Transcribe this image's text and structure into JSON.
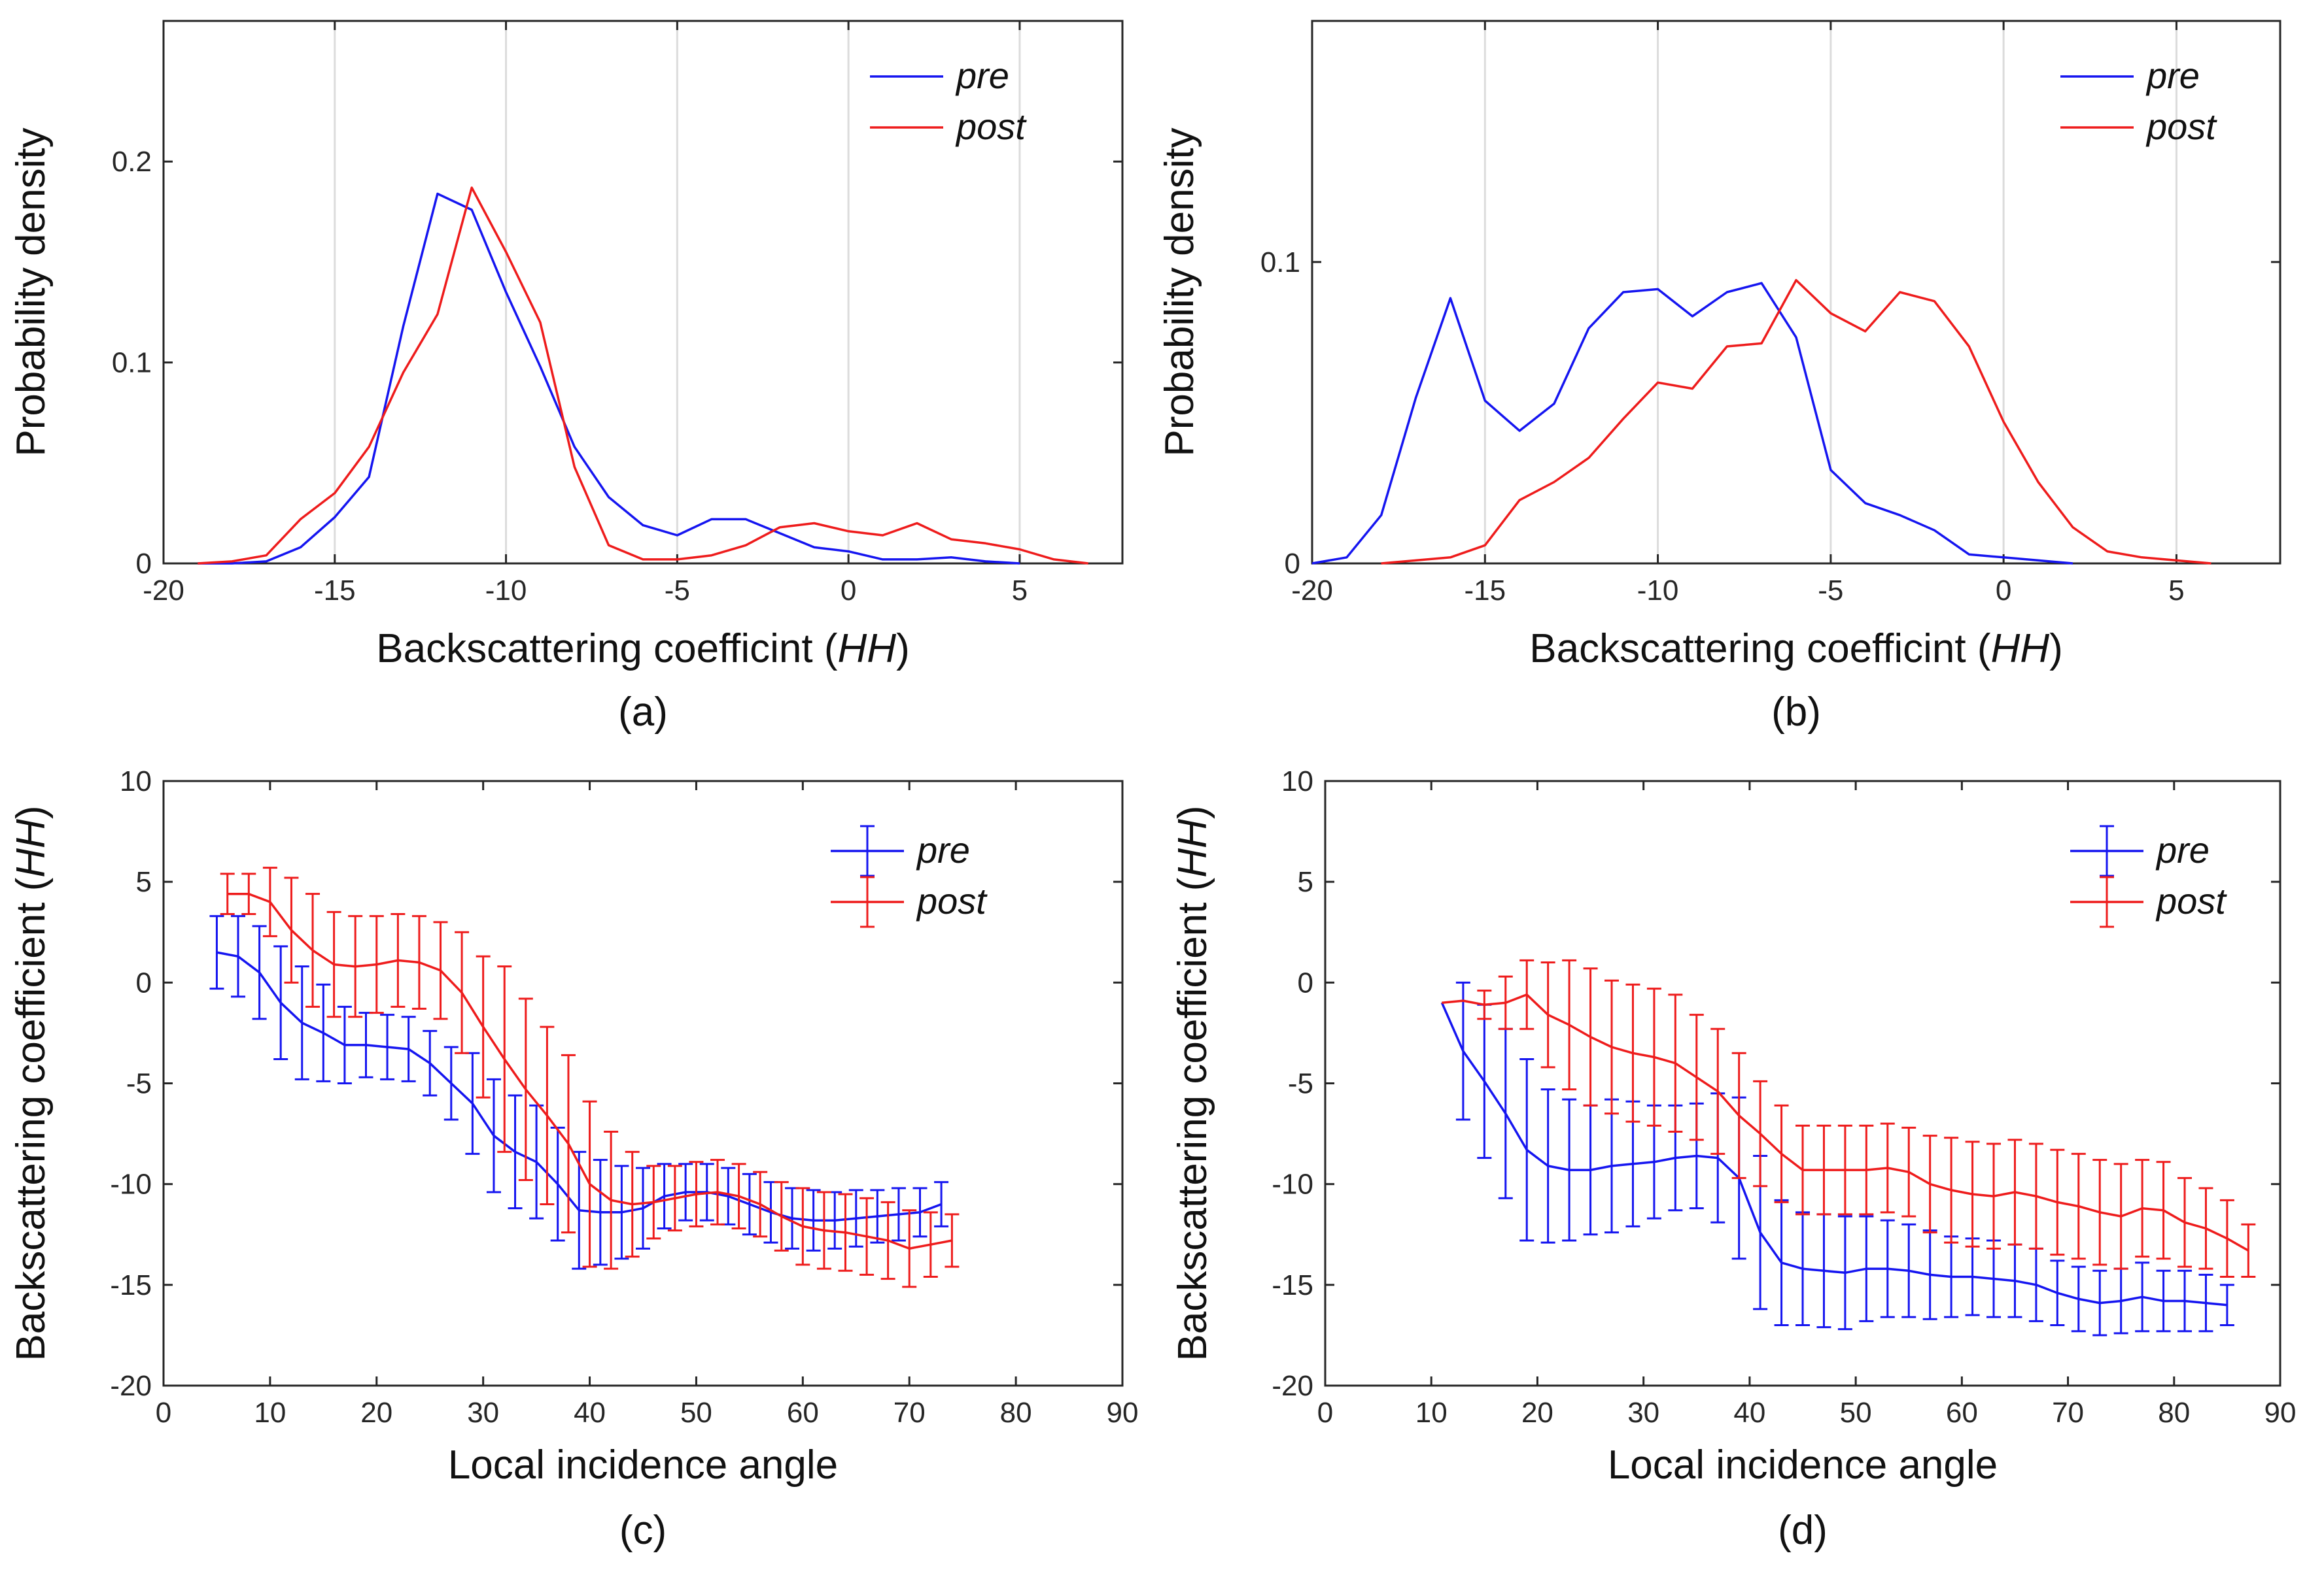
{
  "colors": {
    "pre": "#1515f0",
    "post": "#ee1c1c",
    "axis": "#262626",
    "grid": "#dcdcdc"
  },
  "chart_data": [
    {
      "panel": "(a)",
      "type": "line",
      "xlabel": "Backscattering coefficint",
      "xlabel_italic": "HH",
      "ylabel": "Probability density",
      "xlim": [
        -20,
        8
      ],
      "ylim": [
        0,
        0.27
      ],
      "xticks": [
        -20,
        -15,
        -10,
        -5,
        0,
        5
      ],
      "yticks": [
        0,
        0.1,
        0.2
      ],
      "ytick_labels": [
        "0",
        "0.1",
        "0.2"
      ],
      "grid_x": [
        -15,
        -10,
        -5,
        0,
        5
      ],
      "legend": [
        "pre",
        "post"
      ],
      "series": [
        {
          "name": "pre",
          "x": [
            -19,
            -18,
            -17,
            -16,
            -15,
            -14,
            -13,
            -12,
            -11,
            -10,
            -9,
            -8,
            -7,
            -6,
            -5,
            -4,
            -3,
            -2,
            -1,
            0,
            1,
            2,
            3,
            4,
            5
          ],
          "y": [
            0,
            0,
            0.001,
            0.008,
            0.023,
            0.043,
            0.118,
            0.184,
            0.176,
            0.135,
            0.098,
            0.058,
            0.033,
            0.019,
            0.014,
            0.022,
            0.022,
            0.015,
            0.008,
            0.006,
            0.002,
            0.002,
            0.003,
            0.001,
            0
          ]
        },
        {
          "name": "post",
          "x": [
            -19,
            -18,
            -17,
            -16,
            -15,
            -14,
            -13,
            -12,
            -11,
            -10,
            -9,
            -8,
            -7,
            -6,
            -5,
            -4,
            -3,
            -2,
            -1,
            0,
            1,
            2,
            3,
            4,
            5,
            6,
            7
          ],
          "y": [
            0,
            0.001,
            0.004,
            0.022,
            0.035,
            0.058,
            0.095,
            0.124,
            0.187,
            0.155,
            0.12,
            0.048,
            0.009,
            0.002,
            0.002,
            0.004,
            0.009,
            0.018,
            0.02,
            0.016,
            0.014,
            0.02,
            0.012,
            0.01,
            0.007,
            0.002,
            0
          ]
        }
      ]
    },
    {
      "panel": "(b)",
      "type": "line",
      "xlabel": "Backscattering coefficint",
      "xlabel_italic": "HH",
      "ylabel": "Probability density",
      "xlim": [
        -20,
        8
      ],
      "ylim": [
        0,
        0.18
      ],
      "xticks": [
        -20,
        -15,
        -10,
        -5,
        0,
        5
      ],
      "yticks": [
        0,
        0.1
      ],
      "ytick_labels": [
        "0",
        "0.1"
      ],
      "grid_x": [
        -15,
        -10,
        -5,
        0,
        5
      ],
      "legend": [
        "pre",
        "post"
      ],
      "series": [
        {
          "name": "pre",
          "x": [
            -20,
            -19,
            -18,
            -17,
            -16,
            -15,
            -14,
            -13,
            -12,
            -11,
            -10,
            -9,
            -8,
            -7,
            -6,
            -5,
            -4,
            -3,
            -2,
            -1,
            0,
            1,
            2
          ],
          "y": [
            0,
            0.002,
            0.016,
            0.055,
            0.088,
            0.054,
            0.044,
            0.053,
            0.078,
            0.09,
            0.091,
            0.082,
            0.09,
            0.093,
            0.075,
            0.031,
            0.02,
            0.016,
            0.011,
            0.003,
            0.002,
            0.001,
            0
          ]
        },
        {
          "name": "post",
          "x": [
            -18,
            -17,
            -16,
            -15,
            -14,
            -13,
            -12,
            -11,
            -10,
            -9,
            -8,
            -7,
            -6,
            -5,
            -4,
            -3,
            -2,
            -1,
            0,
            1,
            2,
            3,
            4,
            5,
            6
          ],
          "y": [
            0,
            0.001,
            0.002,
            0.006,
            0.021,
            0.027,
            0.035,
            0.048,
            0.06,
            0.058,
            0.072,
            0.073,
            0.094,
            0.083,
            0.077,
            0.09,
            0.087,
            0.072,
            0.047,
            0.027,
            0.012,
            0.004,
            0.002,
            0.001,
            0
          ]
        }
      ]
    },
    {
      "panel": "(c)",
      "type": "errorbar",
      "xlabel": "Local incidence angle",
      "ylabel": "Backscattering coefficient",
      "ylabel_italic": "HH",
      "xlim": [
        0,
        90
      ],
      "ylim": [
        -20,
        10
      ],
      "xticks": [
        0,
        10,
        20,
        30,
        40,
        50,
        60,
        70,
        80,
        90
      ],
      "yticks": [
        -20,
        -15,
        -10,
        -5,
        0,
        5,
        10
      ],
      "ytick_labels": [
        "-20",
        "-15",
        "-10",
        "-5",
        "0",
        "5",
        "10"
      ],
      "grid_x": [],
      "legend": [
        "pre",
        "post"
      ],
      "series": [
        {
          "name": "pre",
          "x": [
            5,
            7,
            9,
            11,
            13,
            15,
            17,
            19,
            21,
            23,
            25,
            27,
            29,
            31,
            33,
            35,
            37,
            39,
            41,
            43,
            45,
            47,
            49,
            51,
            53,
            55,
            57,
            59,
            61,
            63,
            65,
            67,
            69,
            71,
            73
          ],
          "y": [
            1.5,
            1.3,
            0.5,
            -1.0,
            -2.0,
            -2.5,
            -3.1,
            -3.1,
            -3.2,
            -3.3,
            -4.0,
            -5.0,
            -6.0,
            -7.6,
            -8.4,
            -8.9,
            -10.0,
            -11.3,
            -11.4,
            -11.4,
            -11.2,
            -10.6,
            -10.4,
            -10.4,
            -10.6,
            -11.0,
            -11.4,
            -11.7,
            -11.8,
            -11.8,
            -11.7,
            -11.6,
            -11.5,
            -11.4,
            -11.0
          ],
          "err": [
            1.8,
            2.0,
            2.3,
            2.8,
            2.8,
            2.4,
            1.9,
            1.6,
            1.6,
            1.6,
            1.6,
            1.8,
            2.5,
            2.8,
            2.8,
            2.8,
            2.8,
            2.9,
            2.6,
            2.3,
            2.0,
            1.6,
            1.4,
            1.4,
            1.4,
            1.5,
            1.5,
            1.5,
            1.5,
            1.4,
            1.4,
            1.3,
            1.3,
            1.2,
            1.1
          ]
        },
        {
          "name": "post",
          "x": [
            6,
            8,
            10,
            12,
            14,
            16,
            18,
            20,
            22,
            24,
            26,
            28,
            30,
            32,
            34,
            36,
            38,
            40,
            42,
            44,
            46,
            48,
            50,
            52,
            54,
            56,
            58,
            60,
            62,
            64,
            66,
            68,
            70,
            72,
            74
          ],
          "y": [
            4.4,
            4.4,
            4.0,
            2.6,
            1.6,
            0.9,
            0.8,
            0.9,
            1.1,
            1.0,
            0.6,
            -0.5,
            -2.2,
            -3.8,
            -5.3,
            -6.6,
            -8.0,
            -10.0,
            -10.8,
            -11.0,
            -10.9,
            -10.7,
            -10.5,
            -10.4,
            -10.6,
            -11.0,
            -11.6,
            -12.1,
            -12.3,
            -12.4,
            -12.6,
            -12.8,
            -13.2,
            -13.0,
            -12.8
          ],
          "err": [
            1.0,
            1.0,
            1.7,
            2.6,
            2.8,
            2.6,
            2.5,
            2.4,
            2.3,
            2.3,
            2.4,
            3.0,
            3.5,
            4.6,
            4.5,
            4.4,
            4.4,
            4.1,
            3.4,
            2.6,
            1.8,
            1.6,
            1.6,
            1.6,
            1.6,
            1.6,
            1.7,
            1.9,
            1.9,
            1.9,
            1.9,
            1.9,
            1.9,
            1.6,
            1.3
          ]
        }
      ]
    },
    {
      "panel": "(d)",
      "type": "errorbar",
      "xlabel": "Local incidence angle",
      "ylabel": "Backscattering coefficient",
      "ylabel_italic": "HH",
      "xlim": [
        0,
        90
      ],
      "ylim": [
        -20,
        10
      ],
      "xticks": [
        0,
        10,
        20,
        30,
        40,
        50,
        60,
        70,
        80,
        90
      ],
      "yticks": [
        -20,
        -15,
        -10,
        -5,
        0,
        5,
        10
      ],
      "ytick_labels": [
        "-20",
        "-15",
        "-10",
        "-5",
        "0",
        "5",
        "10"
      ],
      "grid_x": [],
      "legend": [
        "pre",
        "post"
      ],
      "series": [
        {
          "name": "pre",
          "x": [
            11,
            13,
            15,
            17,
            19,
            21,
            23,
            25,
            27,
            29,
            31,
            33,
            35,
            37,
            39,
            41,
            43,
            45,
            47,
            49,
            51,
            53,
            55,
            57,
            59,
            61,
            63,
            65,
            67,
            69,
            71,
            73,
            75,
            77,
            79,
            81,
            83,
            85
          ],
          "y": [
            -1.0,
            -3.4,
            -4.9,
            -6.5,
            -8.3,
            -9.1,
            -9.3,
            -9.3,
            -9.1,
            -9.0,
            -8.9,
            -8.7,
            -8.6,
            -8.7,
            -9.7,
            -12.4,
            -13.9,
            -14.2,
            -14.3,
            -14.4,
            -14.2,
            -14.2,
            -14.3,
            -14.5,
            -14.6,
            -14.6,
            -14.7,
            -14.8,
            -15.0,
            -15.4,
            -15.7,
            -15.9,
            -15.8,
            -15.6,
            -15.8,
            -15.8,
            -15.9,
            -16.0
          ],
          "err": [
            0,
            3.4,
            3.8,
            4.2,
            4.5,
            3.8,
            3.5,
            3.2,
            3.3,
            3.1,
            2.8,
            2.6,
            2.6,
            3.2,
            4.0,
            3.8,
            3.1,
            2.8,
            2.8,
            2.8,
            2.6,
            2.4,
            2.3,
            2.2,
            2.0,
            1.9,
            1.9,
            1.8,
            1.8,
            1.6,
            1.6,
            1.6,
            1.6,
            1.7,
            1.5,
            1.5,
            1.4,
            1.0
          ]
        },
        {
          "name": "post",
          "x": [
            11,
            13,
            15,
            17,
            19,
            21,
            23,
            25,
            27,
            29,
            31,
            33,
            35,
            37,
            39,
            41,
            43,
            45,
            47,
            49,
            51,
            53,
            55,
            57,
            59,
            61,
            63,
            65,
            67,
            69,
            71,
            73,
            75,
            77,
            79,
            81,
            83,
            85,
            87
          ],
          "y": [
            -1.0,
            -0.9,
            -1.1,
            -1.0,
            -0.6,
            -1.6,
            -2.1,
            -2.7,
            -3.2,
            -3.5,
            -3.7,
            -4.0,
            -4.7,
            -5.4,
            -6.6,
            -7.5,
            -8.5,
            -9.3,
            -9.3,
            -9.3,
            -9.3,
            -9.2,
            -9.4,
            -10.0,
            -10.3,
            -10.5,
            -10.6,
            -10.4,
            -10.6,
            -10.9,
            -11.1,
            -11.4,
            -11.6,
            -11.2,
            -11.3,
            -11.9,
            -12.2,
            -12.7,
            -13.3
          ],
          "err": [
            0,
            0,
            0.7,
            1.3,
            1.7,
            2.6,
            3.2,
            3.4,
            3.3,
            3.4,
            3.4,
            3.4,
            3.1,
            3.1,
            3.1,
            2.6,
            2.4,
            2.2,
            2.2,
            2.2,
            2.2,
            2.2,
            2.2,
            2.4,
            2.6,
            2.6,
            2.6,
            2.6,
            2.6,
            2.6,
            2.6,
            2.6,
            2.6,
            2.4,
            2.4,
            2.2,
            2.0,
            1.9,
            1.3
          ]
        }
      ]
    }
  ]
}
